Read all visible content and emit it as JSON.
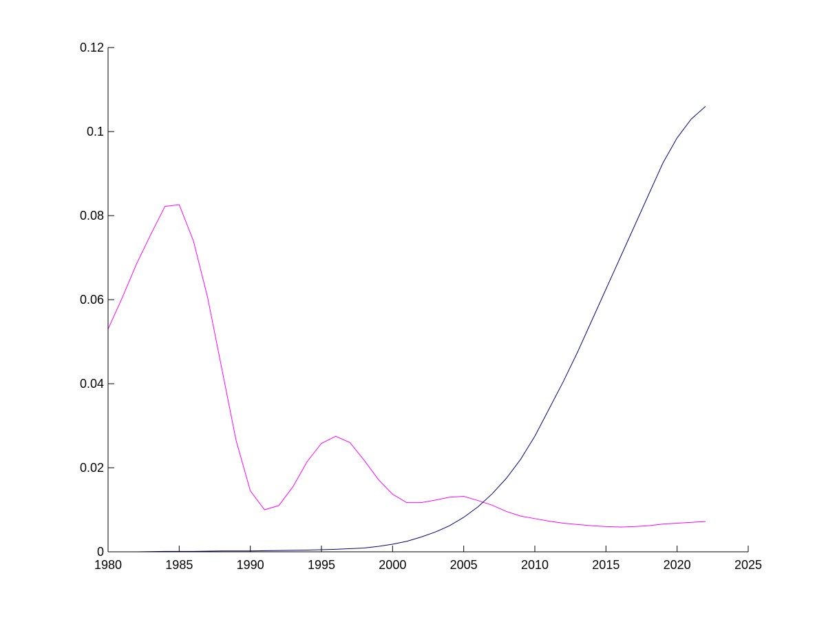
{
  "chart_data": {
    "type": "line",
    "title": "",
    "xlabel": "",
    "ylabel": "",
    "xlim": [
      1980,
      2025
    ],
    "ylim": [
      0,
      0.12
    ],
    "grid": false,
    "legend": "none",
    "xticks": [
      "1980",
      "1985",
      "1990",
      "1995",
      "2000",
      "2005",
      "2010",
      "2015",
      "2020",
      "2025"
    ],
    "yticks": [
      "0",
      "0.02",
      "0.04",
      "0.06",
      "0.08",
      "0.1",
      "0.12"
    ],
    "series": [
      {
        "color": "#ff00ff",
        "x": [
          1980,
          1981,
          1982,
          1983,
          1984,
          1985,
          1986,
          1987,
          1988,
          1989,
          1990,
          1991,
          1992,
          1993,
          1994,
          1995,
          1996,
          1997,
          1998,
          1999,
          2000,
          2001,
          2002,
          2003,
          2004,
          2005,
          2006,
          2007,
          2008,
          2009,
          2010,
          2011,
          2012,
          2013,
          2014,
          2015,
          2016,
          2017,
          2018,
          2019,
          2020,
          2021,
          2022
        ],
        "y": [
          0.053,
          0.0605,
          0.0685,
          0.0755,
          0.0822,
          0.0826,
          0.074,
          0.0605,
          0.0435,
          0.0265,
          0.0145,
          0.01,
          0.011,
          0.0155,
          0.0215,
          0.0258,
          0.0275,
          0.026,
          0.0218,
          0.0172,
          0.0137,
          0.0117,
          0.0117,
          0.0123,
          0.013,
          0.0132,
          0.0122,
          0.0111,
          0.0096,
          0.0085,
          0.0079,
          0.0073,
          0.0068,
          0.0065,
          0.0062,
          0.006,
          0.0059,
          0.006,
          0.0062,
          0.0066,
          0.0068,
          0.007,
          0.0072
        ]
      },
      {
        "color": "#000080",
        "x": [
          1980,
          1982,
          1984,
          1986,
          1988,
          1990,
          1992,
          1994,
          1996,
          1998,
          1999,
          2000,
          2001,
          2002,
          2003,
          2004,
          2005,
          2006,
          2007,
          2008,
          2009,
          2010,
          2011,
          2012,
          2013,
          2014,
          2015,
          2016,
          2017,
          2018,
          2019,
          2020,
          2021,
          2022
        ],
        "y": [
          0.0,
          0.0,
          0.0001,
          0.0001,
          0.0002,
          0.0002,
          0.0003,
          0.0004,
          0.0006,
          0.0009,
          0.0013,
          0.0018,
          0.0025,
          0.0035,
          0.0047,
          0.0062,
          0.0082,
          0.0107,
          0.0138,
          0.0175,
          0.022,
          0.0275,
          0.034,
          0.0405,
          0.0475,
          0.055,
          0.0625,
          0.07,
          0.0775,
          0.085,
          0.0925,
          0.0985,
          0.103,
          0.106
        ]
      }
    ]
  }
}
